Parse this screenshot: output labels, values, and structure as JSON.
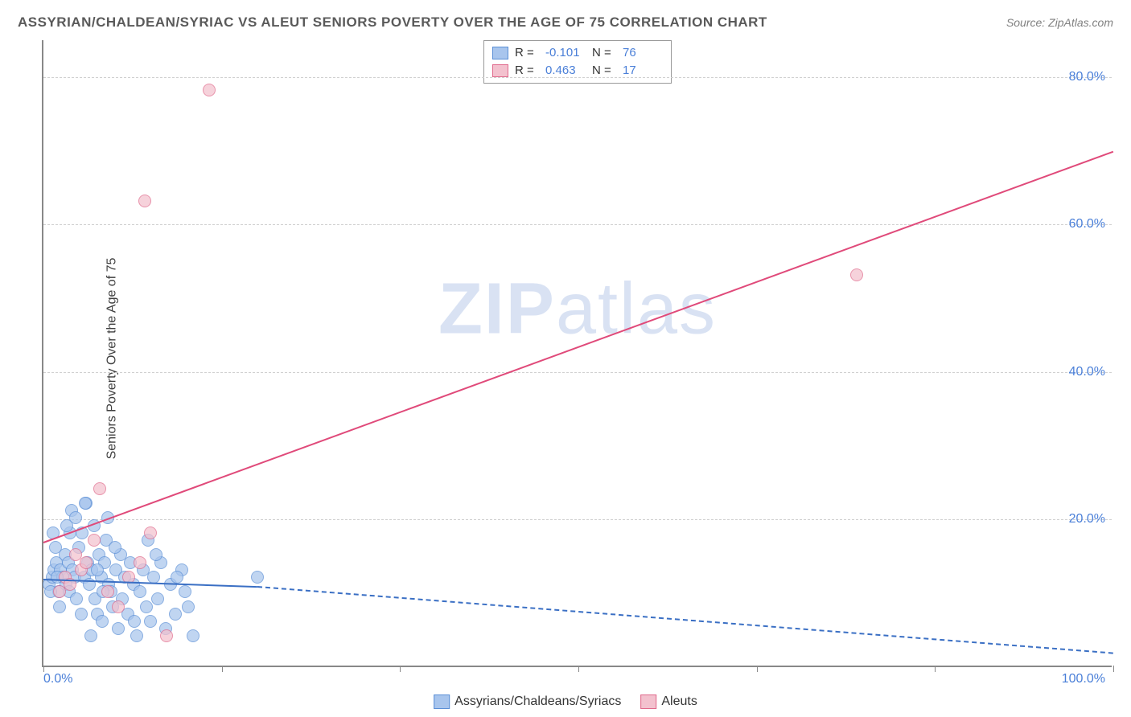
{
  "title": "ASSYRIAN/CHALDEAN/SYRIAC VS ALEUT SENIORS POVERTY OVER THE AGE OF 75 CORRELATION CHART",
  "source": "Source: ZipAtlas.com",
  "ylabel": "Seniors Poverty Over the Age of 75",
  "watermark_a": "ZIP",
  "watermark_b": "atlas",
  "chart": {
    "type": "scatter",
    "xlim": [
      0,
      100
    ],
    "ylim": [
      0,
      85
    ],
    "xtick_labels": {
      "left": "0.0%",
      "right": "100.0%"
    },
    "xtick_positions": [
      0,
      16.67,
      33.33,
      50,
      66.67,
      83.33,
      100
    ],
    "ytick_values": [
      20,
      40,
      60,
      80
    ],
    "ytick_labels": [
      "20.0%",
      "40.0%",
      "60.0%",
      "80.0%"
    ],
    "grid_color": "#d0d0d0",
    "axis_color": "#888888",
    "background_color": "#ffffff",
    "label_color": "#4a7fd8",
    "title_color": "#5a5a5a"
  },
  "series": {
    "blue": {
      "label": "Assyrians/Chaldeans/Syriacs",
      "fill": "#a8c5ed",
      "stroke": "#5b8fd6",
      "opacity": 0.72,
      "R": "-0.101",
      "N": "76",
      "trend": {
        "x1": 0,
        "y1": 12,
        "x2": 20,
        "y2": 11,
        "color": "#3a6fc4",
        "solid_until_x": 20,
        "dash_to_x": 100,
        "dash_to_y": 2
      },
      "points": [
        [
          0.5,
          11
        ],
        [
          0.8,
          12
        ],
        [
          1.0,
          13
        ],
        [
          1.2,
          14
        ],
        [
          1.4,
          10
        ],
        [
          1.5,
          8
        ],
        [
          1.6,
          13
        ],
        [
          1.8,
          12
        ],
        [
          2.0,
          15
        ],
        [
          2.1,
          11
        ],
        [
          2.3,
          14
        ],
        [
          2.4,
          10
        ],
        [
          2.5,
          18
        ],
        [
          2.6,
          21
        ],
        [
          2.7,
          13
        ],
        [
          2.9,
          12
        ],
        [
          3.0,
          20
        ],
        [
          3.1,
          9
        ],
        [
          3.3,
          16
        ],
        [
          3.5,
          7
        ],
        [
          3.6,
          18
        ],
        [
          3.8,
          12
        ],
        [
          4.0,
          22
        ],
        [
          4.1,
          14
        ],
        [
          4.3,
          11
        ],
        [
          4.5,
          13
        ],
        [
          4.7,
          19
        ],
        [
          4.8,
          9
        ],
        [
          5.0,
          7
        ],
        [
          5.2,
          15
        ],
        [
          5.4,
          12
        ],
        [
          5.5,
          6
        ],
        [
          5.7,
          14
        ],
        [
          5.9,
          17
        ],
        [
          6.1,
          11
        ],
        [
          6.3,
          10
        ],
        [
          6.5,
          8
        ],
        [
          6.8,
          13
        ],
        [
          7.0,
          5
        ],
        [
          7.2,
          15
        ],
        [
          7.4,
          9
        ],
        [
          7.6,
          12
        ],
        [
          7.9,
          7
        ],
        [
          8.1,
          14
        ],
        [
          8.4,
          11
        ],
        [
          8.7,
          4
        ],
        [
          9.0,
          10
        ],
        [
          9.3,
          13
        ],
        [
          9.6,
          8
        ],
        [
          10.0,
          6
        ],
        [
          10.3,
          12
        ],
        [
          10.7,
          9
        ],
        [
          11.0,
          14
        ],
        [
          11.4,
          5
        ],
        [
          11.9,
          11
        ],
        [
          12.3,
          7
        ],
        [
          12.9,
          13
        ],
        [
          14.0,
          4
        ],
        [
          13.2,
          10
        ],
        [
          9.8,
          17
        ],
        [
          6.0,
          20
        ],
        [
          3.9,
          22
        ],
        [
          2.2,
          19
        ],
        [
          1.1,
          16
        ],
        [
          0.9,
          18
        ],
        [
          0.7,
          10
        ],
        [
          4.4,
          4
        ],
        [
          5.0,
          13
        ],
        [
          6.7,
          16
        ],
        [
          8.5,
          6
        ],
        [
          10.5,
          15
        ],
        [
          12.5,
          12
        ],
        [
          13.5,
          8
        ],
        [
          5.6,
          10
        ],
        [
          20.0,
          12
        ],
        [
          1.3,
          12
        ]
      ]
    },
    "pink": {
      "label": "Aleuts",
      "fill": "#f3c1ce",
      "stroke": "#e06a8c",
      "opacity": 0.72,
      "R": "0.463",
      "N": "17",
      "trend": {
        "x1": 0,
        "y1": 17,
        "x2": 100,
        "y2": 70,
        "color": "#e04a7a"
      },
      "points": [
        [
          1.5,
          10
        ],
        [
          2.0,
          12
        ],
        [
          2.5,
          11
        ],
        [
          3.0,
          15
        ],
        [
          3.5,
          13
        ],
        [
          4.0,
          14
        ],
        [
          4.7,
          17
        ],
        [
          5.3,
          24
        ],
        [
          6.0,
          10
        ],
        [
          7.0,
          8
        ],
        [
          8.0,
          12
        ],
        [
          9.0,
          14
        ],
        [
          10.0,
          18
        ],
        [
          11.5,
          4
        ],
        [
          15.5,
          78
        ],
        [
          9.5,
          63
        ],
        [
          76.0,
          53
        ]
      ]
    }
  },
  "legend_top": {
    "R_label": "R =",
    "N_label": "N ="
  },
  "legend_bottom": {
    "items": [
      "blue",
      "pink"
    ]
  }
}
